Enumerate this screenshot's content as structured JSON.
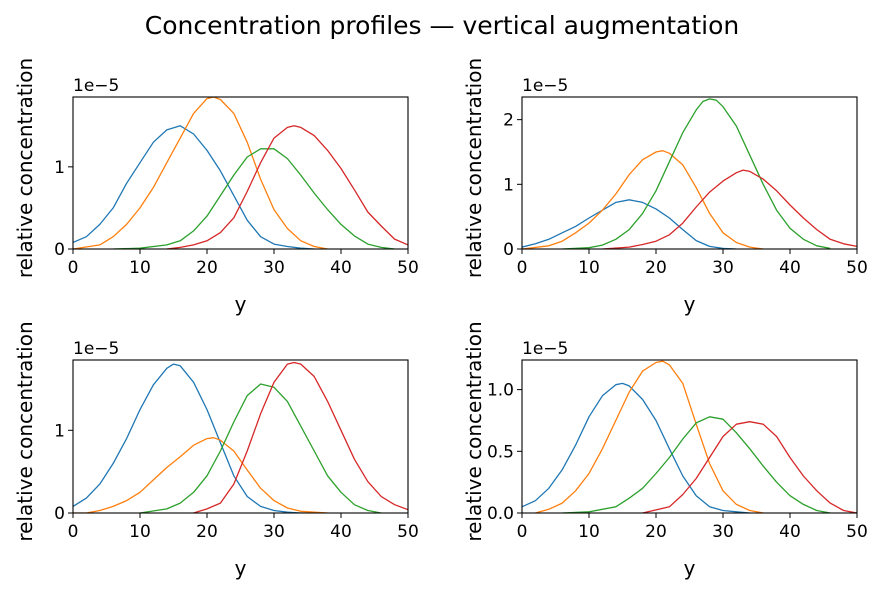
{
  "figure": {
    "suptitle": "Concentration profiles — vertical augmentation"
  },
  "colors": {
    "c0": "#1f77b4",
    "c1": "#ff7f0e",
    "c2": "#2ca02c",
    "c3": "#d62728"
  },
  "chart_data": [
    {
      "type": "line",
      "position": "top-left",
      "xlabel": "y",
      "ylabel": "relative concentration",
      "y_offset_label": "1e−5",
      "xlim": [
        0,
        50
      ],
      "ylim": [
        0,
        1.85
      ],
      "xticks": [
        "0",
        "10",
        "20",
        "30",
        "40",
        "50"
      ],
      "yticks": [
        {
          "v": 0,
          "label": "0"
        },
        {
          "v": 1,
          "label": "1"
        }
      ],
      "grid": false,
      "series": [
        {
          "color": "c0",
          "x": [
            0,
            2,
            4,
            6,
            8,
            10,
            12,
            14,
            16,
            18,
            20,
            22,
            24,
            26,
            28,
            30,
            32,
            34,
            36
          ],
          "y": [
            0.08,
            0.15,
            0.3,
            0.5,
            0.8,
            1.05,
            1.3,
            1.45,
            1.5,
            1.4,
            1.2,
            0.95,
            0.65,
            0.35,
            0.15,
            0.06,
            0.03,
            0.01,
            0.0
          ]
        },
        {
          "color": "c1",
          "x": [
            0,
            4,
            6,
            8,
            10,
            12,
            14,
            16,
            18,
            20,
            21,
            22,
            24,
            26,
            28,
            30,
            32,
            34,
            36,
            38
          ],
          "y": [
            0.0,
            0.05,
            0.15,
            0.3,
            0.5,
            0.75,
            1.05,
            1.35,
            1.65,
            1.83,
            1.85,
            1.82,
            1.65,
            1.3,
            0.85,
            0.48,
            0.25,
            0.1,
            0.03,
            0.0
          ]
        },
        {
          "color": "c2",
          "x": [
            6,
            10,
            14,
            16,
            18,
            20,
            22,
            24,
            26,
            28,
            30,
            32,
            34,
            36,
            38,
            40,
            42,
            44,
            46,
            48
          ],
          "y": [
            0.0,
            0.01,
            0.05,
            0.1,
            0.22,
            0.4,
            0.65,
            0.9,
            1.12,
            1.22,
            1.22,
            1.1,
            0.9,
            0.68,
            0.48,
            0.3,
            0.16,
            0.06,
            0.02,
            0.0
          ]
        },
        {
          "color": "c3",
          "x": [
            14,
            16,
            18,
            20,
            22,
            24,
            26,
            28,
            30,
            32,
            33,
            34,
            36,
            38,
            40,
            42,
            44,
            46,
            48,
            50
          ],
          "y": [
            0.0,
            0.02,
            0.05,
            0.1,
            0.2,
            0.38,
            0.7,
            1.05,
            1.35,
            1.48,
            1.5,
            1.48,
            1.38,
            1.2,
            0.98,
            0.72,
            0.45,
            0.28,
            0.12,
            0.05
          ]
        }
      ]
    },
    {
      "type": "line",
      "position": "top-right",
      "xlabel": "y",
      "ylabel": "relative concentration",
      "y_offset_label": "1e−5",
      "xlim": [
        0,
        50
      ],
      "ylim": [
        0,
        2.35
      ],
      "xticks": [
        "0",
        "10",
        "20",
        "30",
        "40",
        "50"
      ],
      "yticks": [
        {
          "v": 0,
          "label": "0"
        },
        {
          "v": 1,
          "label": "1"
        },
        {
          "v": 2,
          "label": "2"
        }
      ],
      "grid": false,
      "series": [
        {
          "color": "c0",
          "x": [
            0,
            2,
            4,
            6,
            8,
            10,
            12,
            14,
            16,
            18,
            20,
            22,
            24,
            26,
            28,
            30,
            32
          ],
          "y": [
            0.03,
            0.08,
            0.15,
            0.25,
            0.35,
            0.48,
            0.6,
            0.72,
            0.76,
            0.72,
            0.62,
            0.48,
            0.3,
            0.13,
            0.04,
            0.01,
            0.0
          ]
        },
        {
          "color": "c1",
          "x": [
            0,
            4,
            6,
            8,
            10,
            12,
            14,
            16,
            18,
            20,
            21,
            22,
            24,
            26,
            28,
            30,
            32,
            34,
            36
          ],
          "y": [
            0.0,
            0.05,
            0.12,
            0.25,
            0.4,
            0.6,
            0.85,
            1.15,
            1.38,
            1.5,
            1.52,
            1.48,
            1.3,
            0.95,
            0.55,
            0.25,
            0.1,
            0.03,
            0.0
          ]
        },
        {
          "color": "c2",
          "x": [
            6,
            10,
            12,
            14,
            16,
            18,
            20,
            22,
            24,
            26,
            27,
            28,
            29,
            30,
            32,
            34,
            36,
            38,
            40,
            42,
            44,
            46
          ],
          "y": [
            0.0,
            0.02,
            0.06,
            0.15,
            0.3,
            0.55,
            0.9,
            1.35,
            1.8,
            2.15,
            2.28,
            2.32,
            2.3,
            2.2,
            1.9,
            1.45,
            1.0,
            0.6,
            0.32,
            0.15,
            0.05,
            0.01
          ]
        },
        {
          "color": "c3",
          "x": [
            12,
            16,
            18,
            20,
            22,
            24,
            26,
            28,
            30,
            32,
            33,
            34,
            36,
            38,
            40,
            42,
            44,
            46,
            48,
            50
          ],
          "y": [
            0.0,
            0.03,
            0.07,
            0.12,
            0.22,
            0.4,
            0.65,
            0.88,
            1.05,
            1.18,
            1.22,
            1.2,
            1.08,
            0.9,
            0.68,
            0.48,
            0.3,
            0.15,
            0.08,
            0.04
          ]
        }
      ]
    },
    {
      "type": "line",
      "position": "bottom-left",
      "xlabel": "y",
      "ylabel": "relative concentration",
      "y_offset_label": "1e−5",
      "xlim": [
        0,
        50
      ],
      "ylim": [
        0,
        1.85
      ],
      "xticks": [
        "0",
        "10",
        "20",
        "30",
        "40",
        "50"
      ],
      "yticks": [
        {
          "v": 0,
          "label": "0"
        },
        {
          "v": 1,
          "label": "1"
        }
      ],
      "grid": false,
      "series": [
        {
          "color": "c0",
          "x": [
            0,
            2,
            4,
            6,
            8,
            10,
            12,
            14,
            15,
            16,
            18,
            20,
            22,
            24,
            26,
            28,
            30,
            32,
            34,
            36
          ],
          "y": [
            0.08,
            0.18,
            0.35,
            0.6,
            0.9,
            1.25,
            1.55,
            1.75,
            1.8,
            1.78,
            1.58,
            1.25,
            0.85,
            0.45,
            0.2,
            0.08,
            0.03,
            0.01,
            0.0,
            0.0
          ]
        },
        {
          "color": "c1",
          "x": [
            0,
            2,
            4,
            6,
            8,
            10,
            12,
            14,
            16,
            18,
            20,
            21,
            22,
            24,
            26,
            28,
            30,
            32,
            34,
            36,
            38
          ],
          "y": [
            0.0,
            0.0,
            0.03,
            0.08,
            0.15,
            0.25,
            0.4,
            0.55,
            0.68,
            0.82,
            0.9,
            0.91,
            0.88,
            0.75,
            0.52,
            0.3,
            0.15,
            0.06,
            0.02,
            0.01,
            0.0
          ]
        },
        {
          "color": "c2",
          "x": [
            10,
            14,
            16,
            18,
            20,
            22,
            24,
            26,
            28,
            30,
            32,
            34,
            36,
            38,
            40,
            42,
            44,
            46
          ],
          "y": [
            0.0,
            0.05,
            0.12,
            0.25,
            0.45,
            0.75,
            1.1,
            1.42,
            1.56,
            1.52,
            1.35,
            1.05,
            0.75,
            0.45,
            0.25,
            0.1,
            0.03,
            0.0
          ]
        },
        {
          "color": "c3",
          "x": [
            18,
            20,
            22,
            24,
            26,
            28,
            30,
            32,
            33,
            34,
            36,
            38,
            40,
            42,
            44,
            46,
            48,
            50
          ],
          "y": [
            0.0,
            0.05,
            0.12,
            0.35,
            0.75,
            1.2,
            1.58,
            1.8,
            1.82,
            1.8,
            1.65,
            1.35,
            1.0,
            0.65,
            0.38,
            0.2,
            0.1,
            0.04
          ]
        }
      ]
    },
    {
      "type": "line",
      "position": "bottom-right",
      "xlabel": "y",
      "ylabel": "relative concentration",
      "y_offset_label": "1e−5",
      "xlim": [
        0,
        50
      ],
      "ylim": [
        0,
        1.24
      ],
      "xticks": [
        "0",
        "10",
        "20",
        "30",
        "40",
        "50"
      ],
      "yticks": [
        {
          "v": 0,
          "label": "0.0"
        },
        {
          "v": 0.5,
          "label": "0.5"
        },
        {
          "v": 1.0,
          "label": "1.0"
        }
      ],
      "grid": false,
      "series": [
        {
          "color": "c0",
          "x": [
            0,
            2,
            4,
            6,
            8,
            10,
            12,
            14,
            15,
            16,
            18,
            20,
            22,
            24,
            26,
            28,
            30,
            32,
            34
          ],
          "y": [
            0.05,
            0.1,
            0.2,
            0.35,
            0.55,
            0.78,
            0.95,
            1.04,
            1.05,
            1.03,
            0.92,
            0.75,
            0.52,
            0.3,
            0.14,
            0.05,
            0.02,
            0.01,
            0.0
          ]
        },
        {
          "color": "c1",
          "x": [
            2,
            4,
            6,
            8,
            10,
            12,
            14,
            16,
            18,
            20,
            21,
            22,
            24,
            26,
            28,
            30,
            32,
            34,
            36
          ],
          "y": [
            0.0,
            0.03,
            0.08,
            0.18,
            0.32,
            0.52,
            0.75,
            0.98,
            1.15,
            1.22,
            1.23,
            1.2,
            1.05,
            0.72,
            0.4,
            0.18,
            0.07,
            0.02,
            0.0
          ]
        },
        {
          "color": "c2",
          "x": [
            6,
            10,
            14,
            16,
            18,
            20,
            22,
            24,
            26,
            28,
            30,
            32,
            34,
            36,
            38,
            40,
            42,
            44,
            46
          ],
          "y": [
            0.0,
            0.01,
            0.05,
            0.12,
            0.2,
            0.32,
            0.45,
            0.6,
            0.73,
            0.78,
            0.76,
            0.65,
            0.52,
            0.38,
            0.25,
            0.14,
            0.07,
            0.02,
            0.0
          ]
        },
        {
          "color": "c3",
          "x": [
            18,
            22,
            24,
            26,
            28,
            30,
            32,
            34,
            36,
            38,
            40,
            42,
            44,
            46,
            48,
            50
          ],
          "y": [
            0.0,
            0.05,
            0.15,
            0.28,
            0.45,
            0.62,
            0.72,
            0.74,
            0.72,
            0.62,
            0.45,
            0.3,
            0.18,
            0.08,
            0.02,
            0.0
          ]
        }
      ]
    }
  ]
}
